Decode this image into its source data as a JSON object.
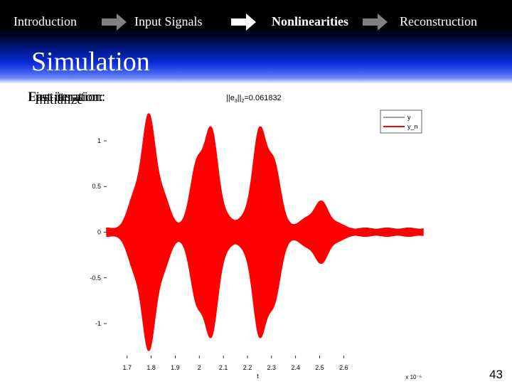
{
  "nav": {
    "items": [
      {
        "label": "Introduction",
        "state": "dim"
      },
      {
        "label": "Input Signals",
        "state": "dim"
      },
      {
        "label": "Nonlinearities",
        "state": "active"
      },
      {
        "label": "Reconstruction",
        "state": "dim"
      }
    ],
    "arrow_colors": [
      "#808080",
      "#ffffff",
      "#808080"
    ]
  },
  "slide_title": "Simulation",
  "overlapping_labels": [
    "First iteration:",
    "Last iteration:",
    "Initialize"
  ],
  "chart_title": {
    "prefix": "||e",
    "sub1": "3",
    "mid": "||",
    "sub2": "2",
    "suffix": "=0.061832"
  },
  "page_number": "43",
  "chart_data": {
    "type": "line",
    "xlabel": "t",
    "x_multiplier": "x 10⁻⁶",
    "ylabel": "",
    "xlim": [
      1.615,
      2.93
    ],
    "ylim": [
      -1.35,
      1.35
    ],
    "xticks": [
      1.7,
      1.8,
      1.9,
      2,
      2.1,
      2.2,
      2.3,
      2.4,
      2.5,
      2.6
    ],
    "xtick_labels": [
      "1.7",
      "1.8",
      "1.9",
      "2",
      "2.1",
      "2.2",
      "2.3",
      "2.4",
      "2.5",
      "2.6"
    ],
    "yticks": [
      1,
      0.5,
      0,
      -0.5,
      -1
    ],
    "ytick_labels": [
      "1",
      "0.5",
      "0",
      "-0.5",
      "-1"
    ],
    "legend_position": "top-right",
    "series": [
      {
        "name": "y",
        "color": "#000000",
        "style": "thin"
      },
      {
        "name": "y_n",
        "color": "#ff0000",
        "style": "thick"
      }
    ],
    "envelope": {
      "bursts": [
        {
          "center": 1.79,
          "amplitude": 1.25
        },
        {
          "center": 2.03,
          "amplitude": 1.25
        },
        {
          "center": 2.27,
          "amplitude": 1.25
        },
        {
          "center": 2.5,
          "amplitude": 0.3
        }
      ],
      "burst_width": 0.065,
      "baseline": 0.05,
      "envelope_modulation_period": 0.09
    }
  }
}
